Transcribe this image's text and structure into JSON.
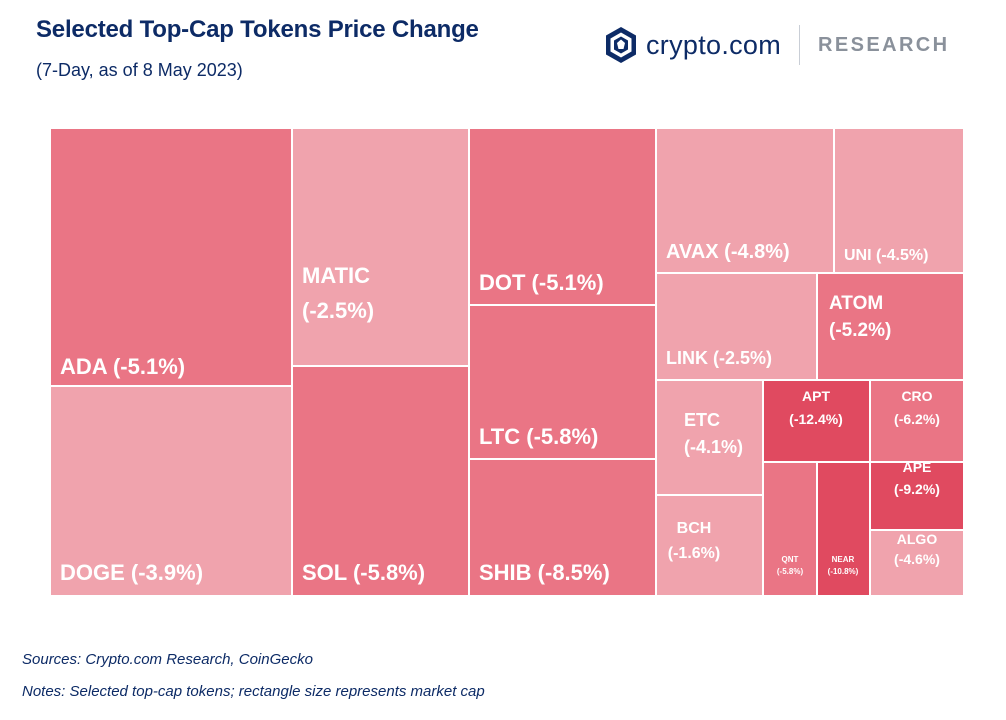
{
  "header": {
    "title": "Selected Top-Cap Tokens Price Change",
    "subtitle": "(7-Day, as of 8 May 2023)"
  },
  "brand": {
    "name": "crypto.com",
    "section": "RESEARCH",
    "icon": "crypto-com-shield-icon"
  },
  "footer": {
    "sources": "Sources: Crypto.com Research, CoinGecko",
    "notes": "Notes: Selected top-cap tokens; rectangle size represents market cap"
  },
  "colors": {
    "light": "#f0a3ad",
    "medium": "#ea7585",
    "dark": "#e04a60",
    "text": "#0d2b66"
  },
  "chart_data": {
    "type": "treemap",
    "title": "Selected Top-Cap Tokens Price Change",
    "subtitle": "(7-Day, as of 8 May 2023)",
    "items": [
      {
        "name": "ADA",
        "change_pct": -5.1,
        "label": "ADA (-5.1%)"
      },
      {
        "name": "DOGE",
        "change_pct": -3.9,
        "label": "DOGE (-3.9%)"
      },
      {
        "name": "MATIC",
        "change_pct": -2.5,
        "label": [
          "MATIC",
          "(-2.5%)"
        ]
      },
      {
        "name": "SOL",
        "change_pct": -5.8,
        "label": "SOL (-5.8%)"
      },
      {
        "name": "DOT",
        "change_pct": -5.1,
        "label": "DOT (-5.1%)"
      },
      {
        "name": "LTC",
        "change_pct": -5.8,
        "label": "LTC (-5.8%)"
      },
      {
        "name": "SHIB",
        "change_pct": -8.5,
        "label": "SHIB (-8.5%)"
      },
      {
        "name": "AVAX",
        "change_pct": -4.8,
        "label": "AVAX (-4.8%)"
      },
      {
        "name": "UNI",
        "change_pct": -4.5,
        "label": "UNI (-4.5%)"
      },
      {
        "name": "LINK",
        "change_pct": -2.5,
        "label": "LINK (-2.5%)"
      },
      {
        "name": "ATOM",
        "change_pct": -5.2,
        "label": [
          "ATOM",
          "(-5.2%)"
        ]
      },
      {
        "name": "ETC",
        "change_pct": -4.1,
        "label": [
          "ETC",
          "(-4.1%)"
        ]
      },
      {
        "name": "APT",
        "change_pct": -12.4,
        "label": [
          "APT",
          "(-12.4%)"
        ]
      },
      {
        "name": "CRO",
        "change_pct": -6.2,
        "label": [
          "CRO",
          "(-6.2%)"
        ]
      },
      {
        "name": "APE",
        "change_pct": -9.2,
        "label": [
          "APE",
          "(-9.2%)"
        ]
      },
      {
        "name": "BCH",
        "change_pct": -1.6,
        "label": [
          "BCH",
          "(-1.6%)"
        ]
      },
      {
        "name": "QNT",
        "change_pct": -5.8,
        "label": [
          "QNT",
          "(-5.8%)"
        ]
      },
      {
        "name": "NEAR",
        "change_pct": -10.8,
        "label": [
          "NEAR",
          "(-10.8%)"
        ]
      },
      {
        "name": "ALGO",
        "change_pct": -4.6,
        "label": [
          "ALGO",
          "(-4.6%)"
        ]
      }
    ]
  }
}
